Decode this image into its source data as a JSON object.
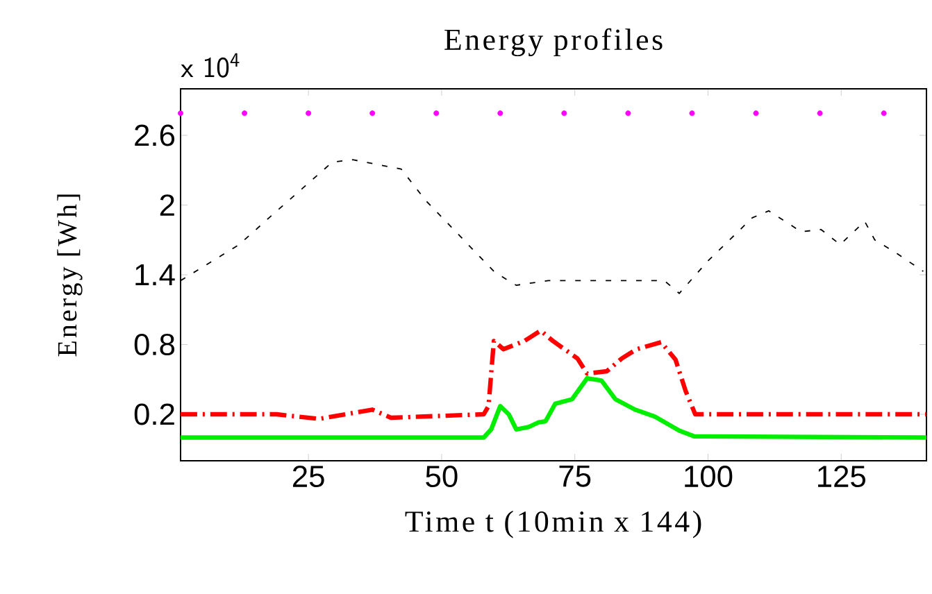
{
  "chart_data": {
    "type": "line",
    "title": "Energy profiles",
    "xlabel": "Time t (10min x 144)",
    "ylabel": "Energy [Wh]",
    "annotations": [
      "x 10$^{4}$"
    ],
    "xlim": [
      1,
      141
    ],
    "xticks": [
      25,
      50,
      75,
      100,
      125
    ],
    "ylim": [
      -0.2,
      3.0
    ],
    "yticks": [
      0.2,
      0.8,
      1.4,
      2,
      2.6
    ],
    "grid": false,
    "series": [
      {
        "type": "scatter",
        "color": "#ff00ff",
        "marker": "circle",
        "x": [
          1,
          13,
          25,
          37,
          49,
          61,
          73,
          85,
          97,
          109,
          121,
          133
        ],
        "values": [
          2.79,
          2.79,
          2.79,
          2.79,
          2.79,
          2.79,
          2.79,
          2.79,
          2.79,
          2.79,
          2.79,
          2.79
        ]
      },
      {
        "color": "#000000",
        "line_style": "dashed",
        "x": [
          1,
          12,
          17.6,
          29.5,
          33.3,
          42.4,
          47,
          59.8,
          62.5,
          64,
          70,
          80,
          91.8,
          94.6,
          100,
          108.3,
          111.4,
          117.5,
          121.2,
          124.8,
          129.4,
          131.3,
          134.9,
          140.4
        ],
        "values": [
          1.35,
          1.66,
          1.89,
          2.37,
          2.39,
          2.31,
          2.04,
          1.43,
          1.35,
          1.31,
          1.35,
          1.35,
          1.35,
          1.24,
          1.52,
          1.89,
          1.95,
          1.77,
          1.79,
          1.66,
          1.86,
          1.7,
          1.6,
          1.43
        ]
      },
      {
        "color": "#ff0000",
        "line_style": "dashdot",
        "x": [
          1,
          19,
          27,
          37,
          40.5,
          57.9,
          58.8,
          59.8,
          61.6,
          65.5,
          68.6,
          70.9,
          75.5,
          77.3,
          81,
          83.8,
          86.6,
          91.2,
          93.9,
          95.8,
          97.6,
          141
        ],
        "values": [
          0.2,
          0.2,
          0.16,
          0.24,
          0.17,
          0.2,
          0.27,
          0.83,
          0.76,
          0.83,
          0.92,
          0.83,
          0.68,
          0.55,
          0.57,
          0.68,
          0.76,
          0.82,
          0.67,
          0.4,
          0.2,
          0.2
        ]
      },
      {
        "color": "#00ee00",
        "line_style": "solid",
        "x": [
          1,
          57.9,
          59.3,
          61,
          62.6,
          64,
          66.3,
          68.2,
          69.5,
          71.3,
          74.5,
          77.3,
          80,
          82.6,
          86.3,
          90,
          94.6,
          97.4,
          141
        ],
        "values": [
          0,
          0,
          0.07,
          0.27,
          0.2,
          0.07,
          0.09,
          0.13,
          0.14,
          0.29,
          0.33,
          0.51,
          0.49,
          0.33,
          0.24,
          0.18,
          0.06,
          0.01,
          0
        ]
      }
    ]
  }
}
